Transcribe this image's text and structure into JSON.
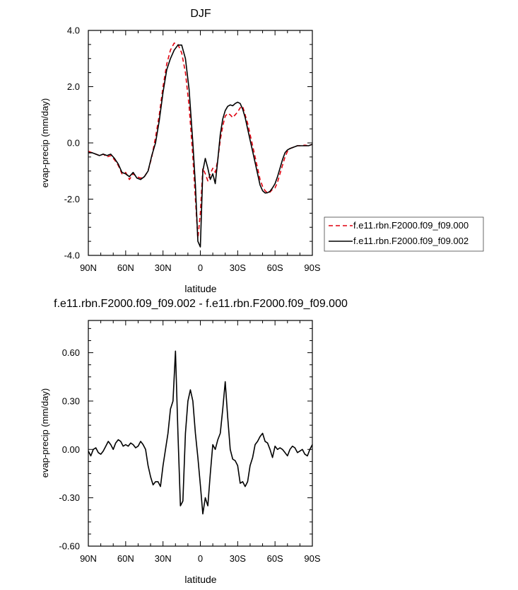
{
  "chart_data": [
    {
      "type": "line",
      "title": "DJF",
      "xlabel": "latitude",
      "ylabel": "evap-precip (mm/day)",
      "xlim": [
        90,
        -90
      ],
      "ylim": [
        -4.0,
        4.0
      ],
      "x_ticks": [
        {
          "value": 90,
          "label": "90N"
        },
        {
          "value": 60,
          "label": "60N"
        },
        {
          "value": 30,
          "label": "30N"
        },
        {
          "value": 0,
          "label": "0"
        },
        {
          "value": -30,
          "label": "30S"
        },
        {
          "value": -60,
          "label": "60S"
        },
        {
          "value": -90,
          "label": "90S"
        }
      ],
      "y_ticks": [
        {
          "value": 4.0,
          "label": "4.0"
        },
        {
          "value": 2.0,
          "label": "2.0"
        },
        {
          "value": 0.0,
          "label": "0.0"
        },
        {
          "value": -2.0,
          "label": "-2.0"
        },
        {
          "value": -4.0,
          "label": "-4.0"
        }
      ],
      "legend_position": "right",
      "series": [
        {
          "name": "f.e11.rbn.F2000.f09_f09.000",
          "color": "#e0000e",
          "dash": "dashed",
          "x": [
            90,
            87,
            84,
            81,
            78,
            75,
            72,
            69,
            66,
            63,
            60,
            57,
            54,
            51,
            48,
            45,
            42,
            39,
            36,
            33,
            30,
            27,
            24,
            21,
            18,
            15,
            12,
            9,
            6,
            4,
            2,
            0,
            -2,
            -4,
            -6,
            -8,
            -10,
            -12,
            -14,
            -16,
            -18,
            -20,
            -22,
            -24,
            -26,
            -28,
            -30,
            -32,
            -34,
            -36,
            -38,
            -40,
            -42,
            -44,
            -46,
            -48,
            -50,
            -52,
            -54,
            -56,
            -58,
            -60,
            -62,
            -64,
            -66,
            -68,
            -70,
            -72,
            -75,
            -78,
            -81,
            -84,
            -87,
            -90
          ],
          "y": [
            -0.3,
            -0.35,
            -0.4,
            -0.45,
            -0.4,
            -0.5,
            -0.45,
            -0.6,
            -0.8,
            -1.1,
            -1.05,
            -1.3,
            -1.1,
            -1.2,
            -1.25,
            -1.2,
            -1.0,
            -0.5,
            0.2,
            1.0,
            2.0,
            2.8,
            3.3,
            3.55,
            3.5,
            3.2,
            2.5,
            1.3,
            -0.5,
            -2.0,
            -3.4,
            -2.5,
            -0.9,
            -1.1,
            -1.35,
            -1.1,
            -0.9,
            -1.05,
            -0.6,
            0.1,
            0.6,
            0.95,
            1.05,
            1.0,
            0.9,
            1.0,
            1.1,
            1.25,
            1.3,
            1.0,
            0.7,
            0.3,
            -0.1,
            -0.5,
            -0.9,
            -1.3,
            -1.55,
            -1.7,
            -1.78,
            -1.75,
            -1.65,
            -1.6,
            -1.4,
            -1.1,
            -0.8,
            -0.5,
            -0.3,
            -0.2,
            -0.15,
            -0.1,
            -0.1,
            -0.08,
            -0.1,
            -0.05
          ]
        },
        {
          "name": "f.e11.rbn.F2000.f09_f09.002",
          "color": "#000000",
          "dash": "solid",
          "x": [
            90,
            87,
            84,
            81,
            78,
            75,
            72,
            69,
            66,
            63,
            60,
            57,
            54,
            51,
            48,
            45,
            42,
            39,
            36,
            33,
            30,
            27,
            24,
            21,
            18,
            15,
            12,
            9,
            6,
            4,
            2,
            0,
            -2,
            -4,
            -6,
            -8,
            -10,
            -12,
            -14,
            -16,
            -18,
            -20,
            -22,
            -24,
            -26,
            -28,
            -30,
            -32,
            -34,
            -36,
            -38,
            -40,
            -42,
            -44,
            -46,
            -48,
            -50,
            -52,
            -54,
            -56,
            -58,
            -60,
            -62,
            -64,
            -66,
            -68,
            -70,
            -72,
            -75,
            -78,
            -81,
            -84,
            -87,
            -90
          ],
          "y": [
            -0.35,
            -0.35,
            -0.4,
            -0.45,
            -0.4,
            -0.45,
            -0.4,
            -0.55,
            -0.75,
            -1.05,
            -1.1,
            -1.2,
            -1.05,
            -1.25,
            -1.3,
            -1.2,
            -1.0,
            -0.45,
            0.0,
            0.8,
            1.8,
            2.6,
            3.0,
            3.3,
            3.48,
            3.48,
            3.0,
            1.9,
            0.0,
            -1.5,
            -3.5,
            -3.7,
            -1.0,
            -0.55,
            -0.9,
            -1.3,
            -1.1,
            -1.45,
            -0.6,
            0.3,
            0.85,
            1.15,
            1.3,
            1.35,
            1.32,
            1.4,
            1.45,
            1.4,
            1.2,
            0.9,
            0.5,
            0.1,
            -0.3,
            -0.7,
            -1.1,
            -1.5,
            -1.7,
            -1.78,
            -1.77,
            -1.72,
            -1.6,
            -1.45,
            -1.2,
            -0.9,
            -0.6,
            -0.35,
            -0.25,
            -0.2,
            -0.15,
            -0.1,
            -0.1,
            -0.1,
            -0.1,
            -0.05
          ]
        }
      ]
    },
    {
      "type": "line",
      "title": "f.e11.rbn.F2000.f09_f09.002 - f.e11.rbn.F2000.f09_f09.000",
      "xlabel": "latitude",
      "ylabel": "evap-precip (mm/day)",
      "xlim": [
        90,
        -90
      ],
      "ylim": [
        -0.6,
        0.8
      ],
      "x_ticks": [
        {
          "value": 90,
          "label": "90N"
        },
        {
          "value": 60,
          "label": "60N"
        },
        {
          "value": 30,
          "label": "30N"
        },
        {
          "value": 0,
          "label": "0"
        },
        {
          "value": -30,
          "label": "30S"
        },
        {
          "value": -60,
          "label": "60S"
        },
        {
          "value": -90,
          "label": "90S"
        }
      ],
      "y_ticks": [
        {
          "value": 0.6,
          "label": "0.60"
        },
        {
          "value": 0.3,
          "label": "0.30"
        },
        {
          "value": 0.0,
          "label": "0.00"
        },
        {
          "value": -0.3,
          "label": "-0.30"
        },
        {
          "value": -0.6,
          "label": "-0.60"
        }
      ],
      "series": [
        {
          "color": "#000000",
          "dash": "solid",
          "x": [
            90,
            88,
            86,
            84,
            82,
            80,
            78,
            76,
            74,
            72,
            70,
            68,
            66,
            64,
            62,
            60,
            58,
            56,
            54,
            52,
            50,
            48,
            46,
            44,
            42,
            40,
            38,
            36,
            34,
            32,
            30,
            28,
            26,
            24,
            22,
            20,
            18,
            16,
            14,
            12,
            10,
            8,
            6,
            4,
            2,
            0,
            -2,
            -4,
            -6,
            -8,
            -10,
            -12,
            -14,
            -16,
            -18,
            -20,
            -22,
            -24,
            -26,
            -28,
            -30,
            -32,
            -34,
            -36,
            -38,
            -40,
            -42,
            -44,
            -46,
            -48,
            -50,
            -52,
            -54,
            -56,
            -58,
            -60,
            -62,
            -64,
            -66,
            -68,
            -70,
            -72,
            -74,
            -76,
            -78,
            -80,
            -82,
            -84,
            -86,
            -88,
            -90
          ],
          "y": [
            -0.01,
            -0.04,
            0.0,
            0.01,
            -0.02,
            -0.03,
            -0.01,
            0.02,
            0.05,
            0.03,
            0.0,
            0.04,
            0.06,
            0.05,
            0.02,
            0.03,
            0.02,
            0.04,
            0.03,
            0.01,
            0.02,
            0.05,
            0.03,
            0.0,
            -0.1,
            -0.17,
            -0.22,
            -0.2,
            -0.2,
            -0.23,
            -0.1,
            0.0,
            0.1,
            0.25,
            0.3,
            0.61,
            0.1,
            -0.35,
            -0.32,
            0.1,
            0.3,
            0.37,
            0.3,
            0.1,
            -0.05,
            -0.22,
            -0.4,
            -0.3,
            -0.35,
            -0.15,
            0.03,
            0.0,
            0.06,
            0.1,
            0.25,
            0.42,
            0.2,
            0.0,
            -0.06,
            -0.07,
            -0.1,
            -0.21,
            -0.2,
            -0.23,
            -0.2,
            -0.1,
            -0.05,
            0.03,
            0.05,
            0.08,
            0.1,
            0.05,
            0.04,
            0.0,
            -0.05,
            0.02,
            0.0,
            0.01,
            0.0,
            -0.02,
            -0.04,
            0.0,
            0.02,
            0.01,
            -0.02,
            -0.01,
            0.0,
            -0.03,
            -0.04,
            0.0,
            0.03
          ]
        }
      ]
    }
  ]
}
